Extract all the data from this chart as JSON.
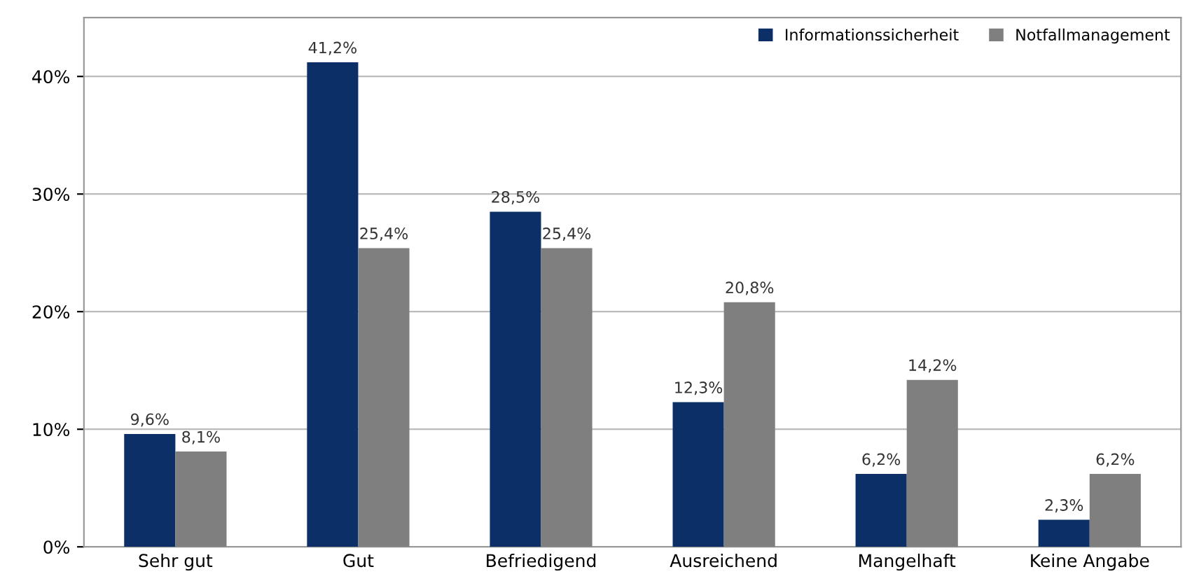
{
  "chart_data": {
    "type": "bar",
    "categories": [
      "Sehr gut",
      "Gut",
      "Befriedigend",
      "Ausreichend",
      "Mangelhaft",
      "Keine Angabe"
    ],
    "series": [
      {
        "name": "Informationssicherheit",
        "color": "#0b2f66",
        "values": [
          9.6,
          41.2,
          28.5,
          12.3,
          6.2,
          2.3
        ],
        "value_labels": [
          "9,6%",
          "41,2%",
          "28,5%",
          "12,3%",
          "6,2%",
          "2,3%"
        ]
      },
      {
        "name": "Notfallmanagement",
        "color": "#7f7f7f",
        "values": [
          8.1,
          25.4,
          25.4,
          20.8,
          14.2,
          6.2
        ],
        "value_labels": [
          "8,1%",
          "25,4%",
          "25,4%",
          "20,8%",
          "14,2%",
          "6,2%"
        ]
      }
    ],
    "ylim": [
      0,
      45
    ],
    "yticks": [
      {
        "value": 0,
        "label": "0%"
      },
      {
        "value": 10,
        "label": "10%"
      },
      {
        "value": 20,
        "label": "20%"
      },
      {
        "value": 30,
        "label": "30%"
      },
      {
        "value": 40,
        "label": "40%"
      }
    ],
    "grid": "y",
    "legend": "top right"
  }
}
